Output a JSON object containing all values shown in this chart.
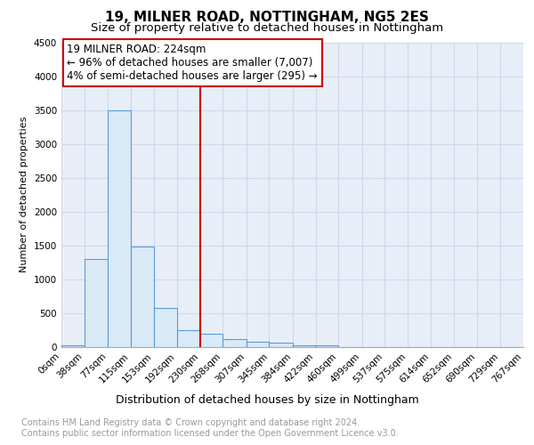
{
  "title1": "19, MILNER ROAD, NOTTINGHAM, NG5 2ES",
  "title2": "Size of property relative to detached houses in Nottingham",
  "xlabel": "Distribution of detached houses by size in Nottingham",
  "ylabel": "Number of detached properties",
  "annotation_line1": "19 MILNER ROAD: 224sqm",
  "annotation_line2": "← 96% of detached houses are smaller (7,007)",
  "annotation_line3": "4% of semi-detached houses are larger (295) →",
  "footnote1": "Contains HM Land Registry data © Crown copyright and database right 2024.",
  "footnote2": "Contains public sector information licensed under the Open Government Licence v3.0.",
  "bin_edges": [
    0,
    38,
    77,
    115,
    153,
    192,
    230,
    268,
    307,
    345,
    384,
    422,
    460,
    499,
    537,
    575,
    614,
    652,
    690,
    729,
    767
  ],
  "bin_labels": [
    "0sqm",
    "38sqm",
    "77sqm",
    "115sqm",
    "153sqm",
    "192sqm",
    "230sqm",
    "268sqm",
    "307sqm",
    "345sqm",
    "384sqm",
    "422sqm",
    "460sqm",
    "499sqm",
    "537sqm",
    "575sqm",
    "614sqm",
    "652sqm",
    "690sqm",
    "729sqm",
    "767sqm"
  ],
  "counts": [
    30,
    1300,
    3500,
    1480,
    580,
    250,
    200,
    120,
    75,
    60,
    30,
    30,
    0,
    0,
    0,
    0,
    0,
    0,
    0,
    0
  ],
  "bar_color": "#daeaf7",
  "bar_edge_color": "#5b9bd5",
  "vline_color": "#cc0000",
  "vline_x": 230,
  "ylim": [
    0,
    4500
  ],
  "yticks": [
    0,
    500,
    1000,
    1500,
    2000,
    2500,
    3000,
    3500,
    4000,
    4500
  ],
  "grid_color": "#d0d8e8",
  "background_color": "#e8eef8",
  "box_edge_color": "#cc0000",
  "title1_fontsize": 11,
  "title2_fontsize": 9.5,
  "annotation_fontsize": 8.5,
  "ylabel_fontsize": 8,
  "xlabel_fontsize": 9,
  "tick_fontsize": 7.5,
  "footnote_fontsize": 7,
  "footnote_color": "#999999"
}
